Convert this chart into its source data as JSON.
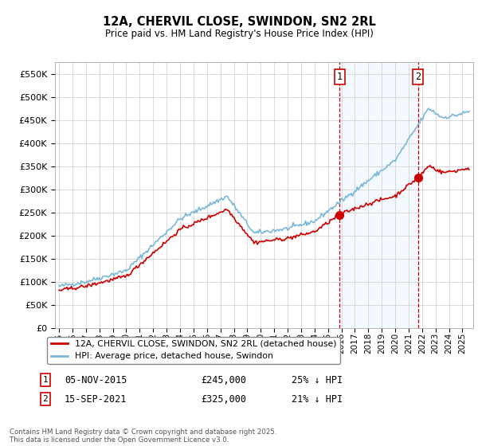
{
  "title": "12A, CHERVIL CLOSE, SWINDON, SN2 2RL",
  "subtitle": "Price paid vs. HM Land Registry's House Price Index (HPI)",
  "ylabel_ticks": [
    "£0",
    "£50K",
    "£100K",
    "£150K",
    "£200K",
    "£250K",
    "£300K",
    "£350K",
    "£400K",
    "£450K",
    "£500K",
    "£550K"
  ],
  "ytick_values": [
    0,
    50000,
    100000,
    150000,
    200000,
    250000,
    300000,
    350000,
    400000,
    450000,
    500000,
    550000
  ],
  "ylim": [
    0,
    575000
  ],
  "xlim_start": 1994.7,
  "xlim_end": 2025.8,
  "sale1_date": 2015.85,
  "sale1_price": 245000,
  "sale1_label": "1",
  "sale1_hpi_text": "25% ↓ HPI",
  "sale1_date_text": "05-NOV-2015",
  "sale2_date": 2021.71,
  "sale2_price": 325000,
  "sale2_label": "2",
  "sale2_hpi_text": "21% ↓ HPI",
  "sale2_date_text": "15-SEP-2021",
  "hpi_color": "#7ab8d9",
  "price_color": "#cc0000",
  "vline_color": "#cc0000",
  "shade_color": "#ddeeff",
  "legend_label_price": "12A, CHERVIL CLOSE, SWINDON, SN2 2RL (detached house)",
  "legend_label_hpi": "HPI: Average price, detached house, Swindon",
  "footer": "Contains HM Land Registry data © Crown copyright and database right 2025.\nThis data is licensed under the Open Government Licence v3.0.",
  "background_color": "#ffffff",
  "grid_color": "#cccccc"
}
